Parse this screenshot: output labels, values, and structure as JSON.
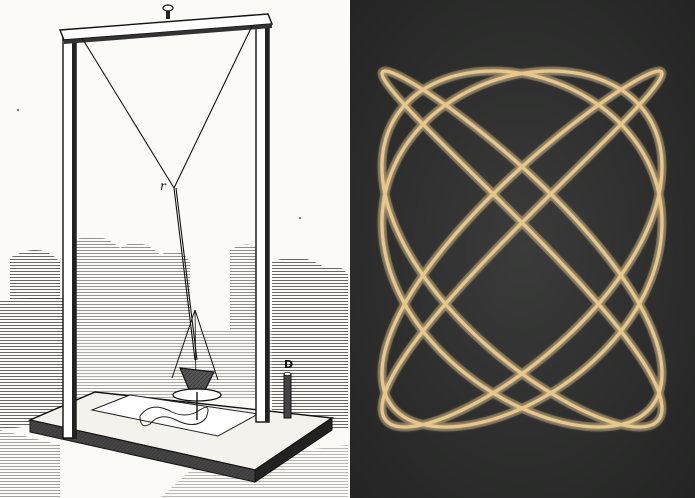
{
  "left_panel": {
    "labels": {
      "knot": "r",
      "rod": "D"
    }
  },
  "right_panel": {
    "lissajous": {
      "freq_x": 5,
      "freq_y": 4,
      "phase": 0.6,
      "color": "#e8c88a",
      "glow_color": "#f3dcb0",
      "background": "#2d2e2d"
    }
  }
}
